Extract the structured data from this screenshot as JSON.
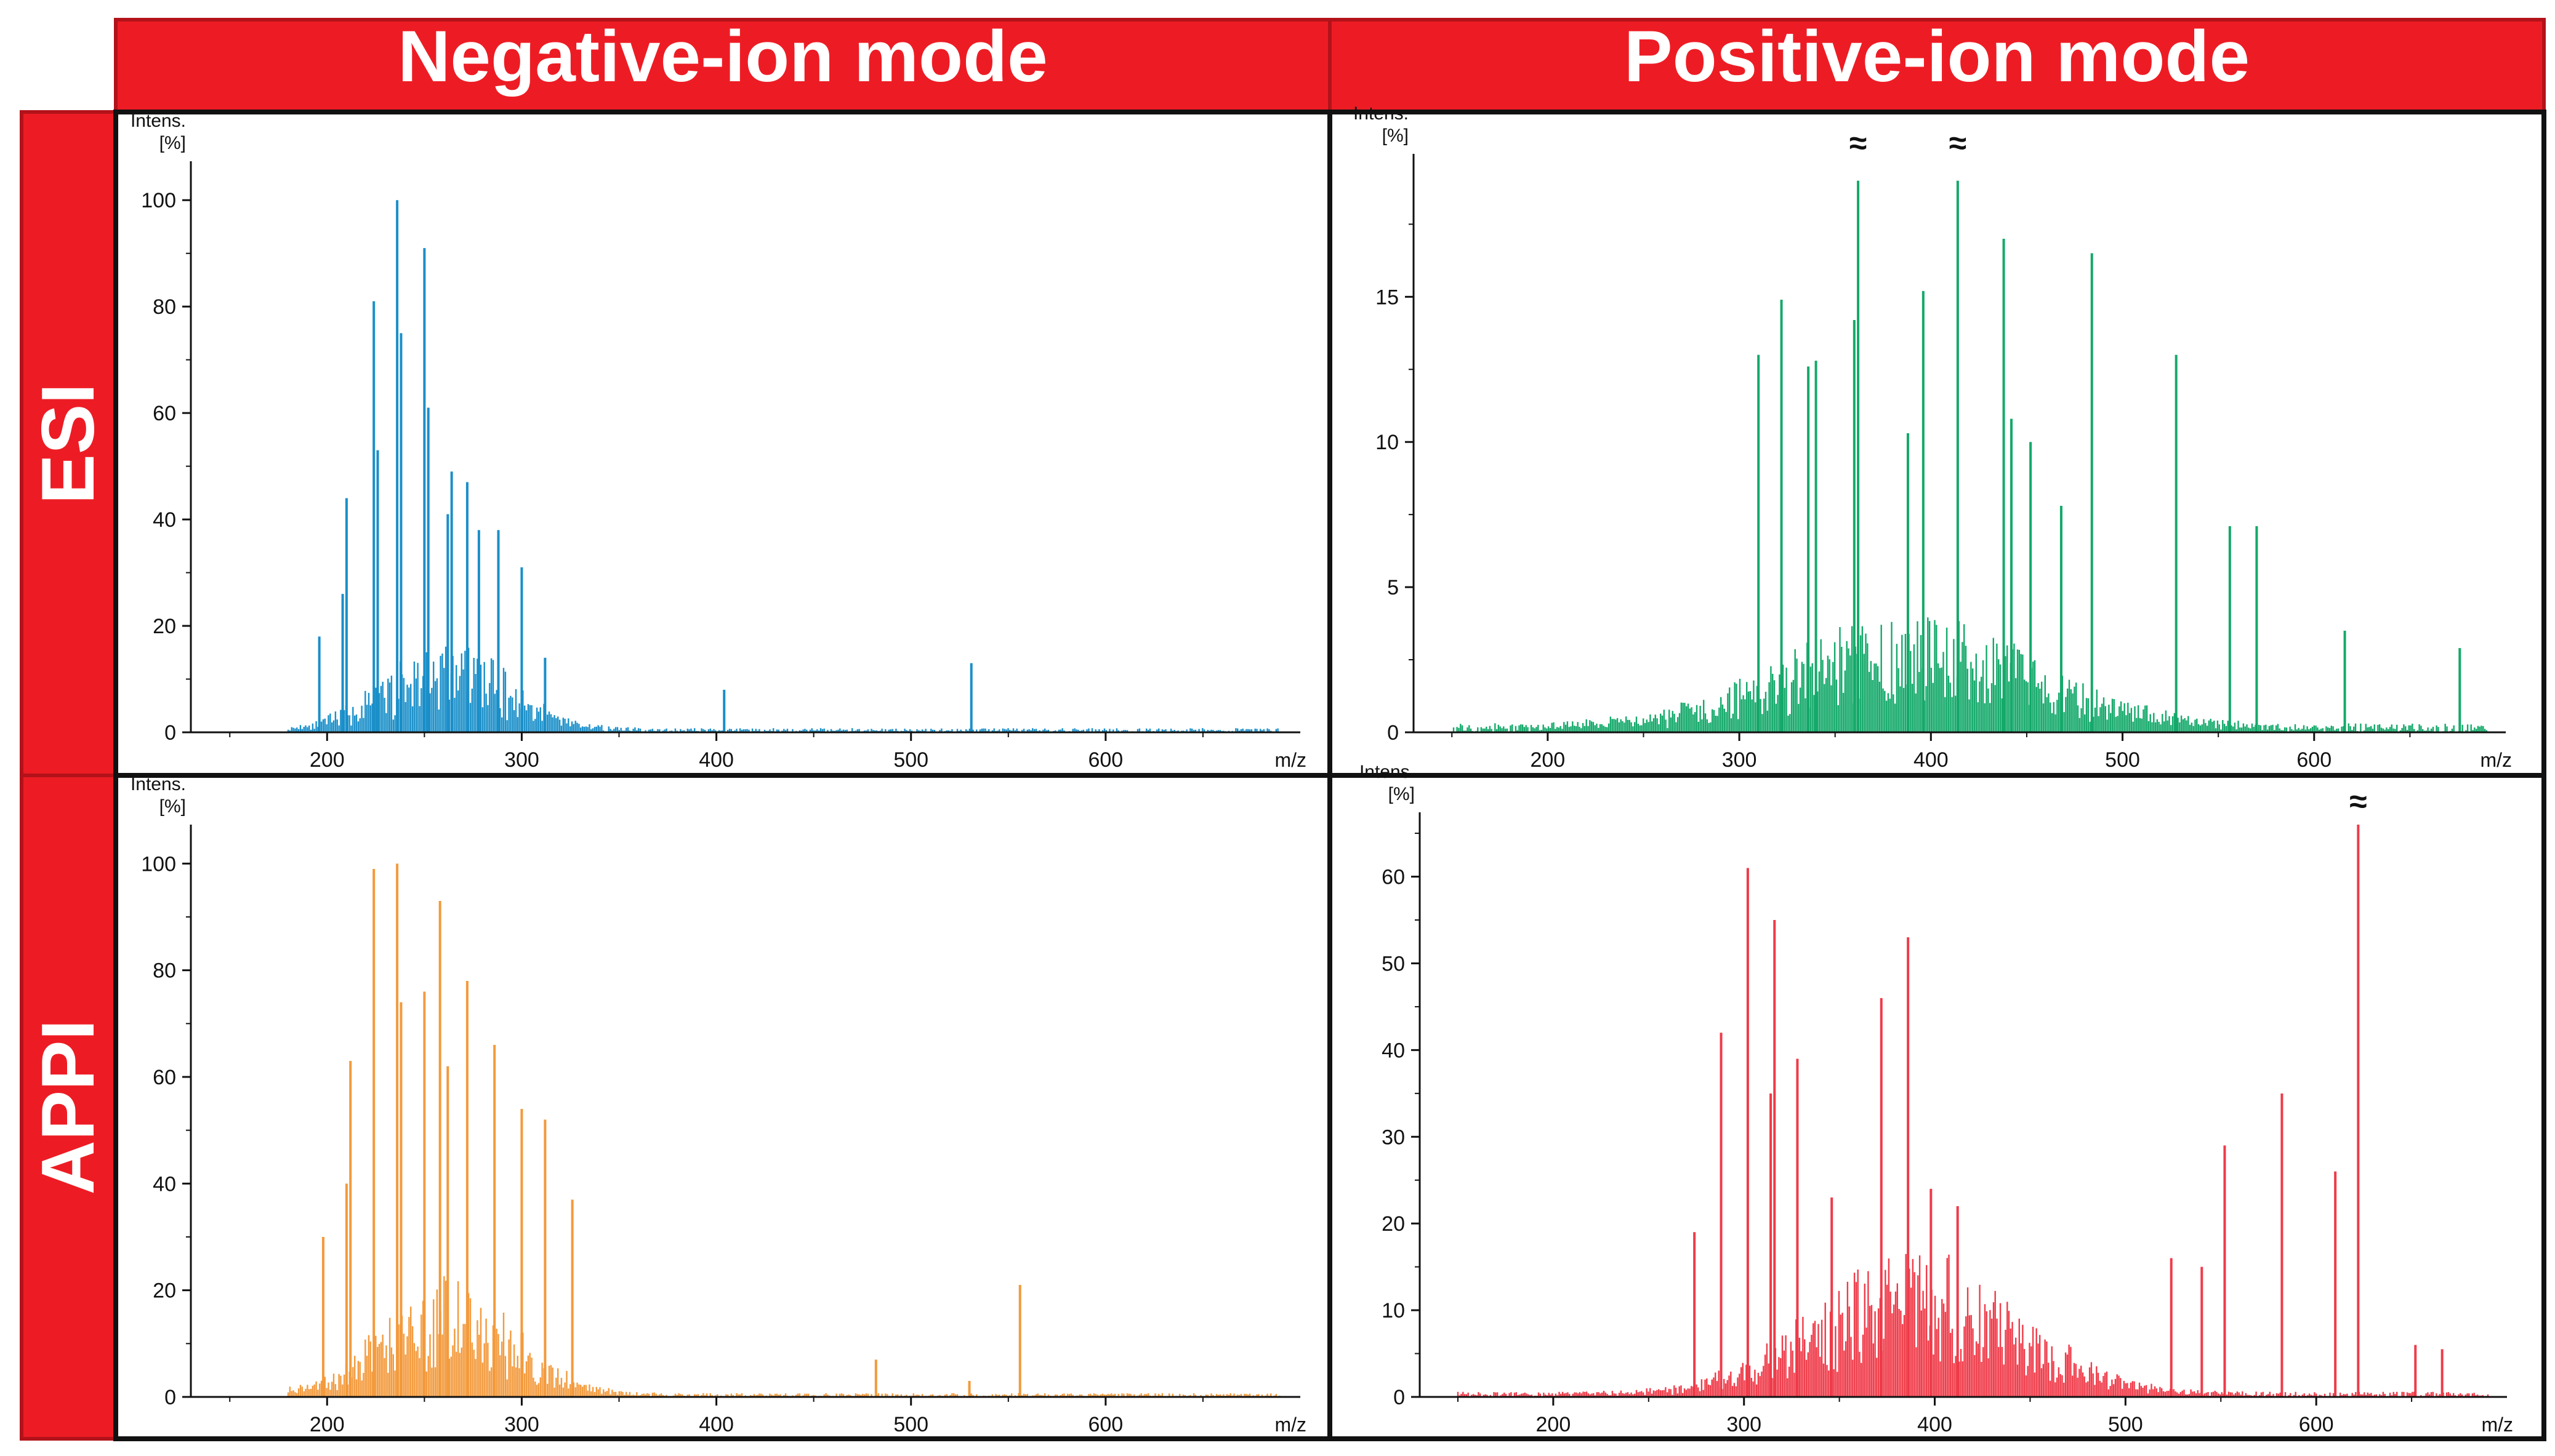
{
  "header": {
    "negative": "Negative-ion mode",
    "positive": "Positive-ion mode"
  },
  "rows": {
    "esi": "ESI",
    "appi": "APPI"
  },
  "colors": {
    "band": "#ed1c24",
    "band_border": "#b3121a",
    "panel_border": "#111111",
    "esi_negative": "#1a8fc9",
    "esi_positive": "#14a96a",
    "appi_negative": "#f39a3c",
    "appi_positive": "#ef3b49"
  },
  "chart_data": [
    {
      "id": "esi-negative",
      "type": "bar",
      "title": "ESI Negative-ion mode",
      "xlabel": "m/z",
      "ylabel": "Intens. [%]",
      "ylabel_lines": [
        "Intens.",
        "[%]"
      ],
      "xlim": [
        130,
        700
      ],
      "ylim": [
        0,
        105
      ],
      "xticks": [
        200,
        300,
        400,
        500,
        600
      ],
      "yticks": [
        0,
        20,
        40,
        60,
        80,
        100
      ],
      "break_markers": [],
      "tallest_peaks": [
        {
          "x": 236,
          "y": 100
        },
        {
          "x": 250,
          "y": 91
        },
        {
          "x": 224,
          "y": 81
        },
        {
          "x": 238,
          "y": 75
        },
        {
          "x": 252,
          "y": 61
        },
        {
          "x": 226,
          "y": 53
        },
        {
          "x": 264,
          "y": 49
        },
        {
          "x": 210,
          "y": 44
        },
        {
          "x": 272,
          "y": 47
        },
        {
          "x": 262,
          "y": 41
        },
        {
          "x": 278,
          "y": 38
        },
        {
          "x": 288,
          "y": 38
        },
        {
          "x": 300,
          "y": 31
        },
        {
          "x": 208,
          "y": 26
        },
        {
          "x": 196,
          "y": 18
        },
        {
          "x": 312,
          "y": 14
        },
        {
          "x": 404,
          "y": 8
        },
        {
          "x": 531,
          "y": 13
        }
      ]
    },
    {
      "id": "esi-positive",
      "type": "bar",
      "title": "ESI Positive-ion mode",
      "xlabel": "m/z",
      "ylabel": "Intens. [%]",
      "ylabel_lines": [
        "Intens.",
        "[%]"
      ],
      "xlim": [
        130,
        700
      ],
      "ylim": [
        0,
        19.5
      ],
      "xticks": [
        200,
        300,
        400,
        500,
        600
      ],
      "yticks": [
        0,
        5,
        10,
        15
      ],
      "break_markers": [
        362,
        414
      ],
      "tallest_peaks": [
        {
          "x": 362,
          "y": 19
        },
        {
          "x": 414,
          "y": 19
        },
        {
          "x": 438,
          "y": 17
        },
        {
          "x": 484,
          "y": 16.5
        },
        {
          "x": 396,
          "y": 15.2
        },
        {
          "x": 322,
          "y": 14.9
        },
        {
          "x": 360,
          "y": 14.2
        },
        {
          "x": 528,
          "y": 13
        },
        {
          "x": 310,
          "y": 13
        },
        {
          "x": 340,
          "y": 12.8
        },
        {
          "x": 336,
          "y": 12.6
        },
        {
          "x": 442,
          "y": 10.8
        },
        {
          "x": 388,
          "y": 10.3
        },
        {
          "x": 452,
          "y": 10
        },
        {
          "x": 468,
          "y": 7.8
        },
        {
          "x": 556,
          "y": 7.1
        },
        {
          "x": 570,
          "y": 7.1
        },
        {
          "x": 616,
          "y": 3.5
        },
        {
          "x": 676,
          "y": 2.9
        }
      ]
    },
    {
      "id": "appi-negative",
      "type": "bar",
      "title": "APPI Negative-ion mode",
      "xlabel": "m/z",
      "ylabel": "Intens. [%]",
      "ylabel_lines": [
        "Intens.",
        "[%]"
      ],
      "xlim": [
        130,
        700
      ],
      "ylim": [
        0,
        105
      ],
      "xticks": [
        200,
        300,
        400,
        500,
        600
      ],
      "yticks": [
        0,
        20,
        40,
        60,
        80,
        100
      ],
      "break_markers": [],
      "tallest_peaks": [
        {
          "x": 236,
          "y": 100
        },
        {
          "x": 224,
          "y": 99
        },
        {
          "x": 258,
          "y": 93
        },
        {
          "x": 250,
          "y": 76
        },
        {
          "x": 272,
          "y": 78
        },
        {
          "x": 238,
          "y": 74
        },
        {
          "x": 286,
          "y": 66
        },
        {
          "x": 212,
          "y": 63
        },
        {
          "x": 262,
          "y": 62
        },
        {
          "x": 300,
          "y": 54
        },
        {
          "x": 312,
          "y": 52
        },
        {
          "x": 326,
          "y": 37
        },
        {
          "x": 210,
          "y": 40
        },
        {
          "x": 198,
          "y": 30
        },
        {
          "x": 556,
          "y": 21
        },
        {
          "x": 482,
          "y": 7
        },
        {
          "x": 530,
          "y": 3
        }
      ]
    },
    {
      "id": "appi-positive",
      "type": "bar",
      "title": "APPI Positive-ion mode",
      "xlabel": "m/z",
      "ylabel": "Intens. [%]",
      "ylabel_lines": [
        "Intens.",
        "[%]"
      ],
      "xlim": [
        130,
        700
      ],
      "ylim": [
        0,
        66
      ],
      "xticks": [
        200,
        300,
        400,
        500,
        600
      ],
      "yticks": [
        0,
        10,
        20,
        30,
        40,
        50,
        60
      ],
      "break_markers": [
        622
      ],
      "tallest_peaks": [
        {
          "x": 622,
          "y": 66
        },
        {
          "x": 302,
          "y": 61
        },
        {
          "x": 316,
          "y": 55
        },
        {
          "x": 386,
          "y": 53
        },
        {
          "x": 372,
          "y": 46
        },
        {
          "x": 288,
          "y": 42
        },
        {
          "x": 328,
          "y": 39
        },
        {
          "x": 314,
          "y": 35
        },
        {
          "x": 582,
          "y": 35
        },
        {
          "x": 552,
          "y": 29
        },
        {
          "x": 610,
          "y": 26
        },
        {
          "x": 346,
          "y": 23
        },
        {
          "x": 398,
          "y": 24
        },
        {
          "x": 412,
          "y": 22
        },
        {
          "x": 274,
          "y": 19
        },
        {
          "x": 524,
          "y": 16
        },
        {
          "x": 540,
          "y": 15
        },
        {
          "x": 652,
          "y": 6
        },
        {
          "x": 666,
          "y": 5.5
        }
      ]
    }
  ]
}
